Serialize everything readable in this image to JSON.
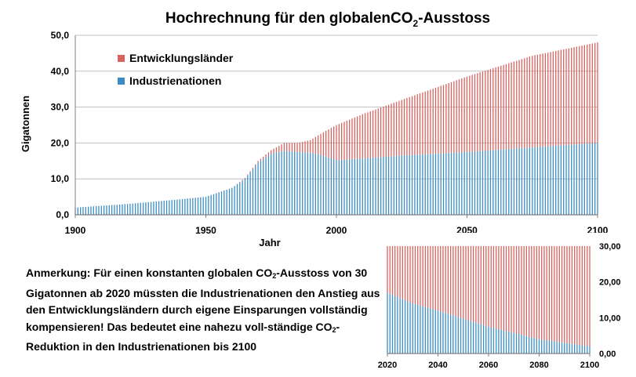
{
  "colors": {
    "developing": "#d9625f",
    "industrial": "#3a8cc4",
    "grid": "#bfbfbf",
    "axis": "#7f7f7f"
  },
  "title": {
    "prefix": "Hochrechnung für den globalenCO",
    "sub": "2",
    "suffix": "-Ausstoss"
  },
  "note": {
    "p1": "Anmerkung: Für einen konstanten globalen CO",
    "p1sub": "2",
    "p2": "-Ausstoss von 30 Gigatonnen ab 2020 müssten die Industrienationen den Anstieg aus den Entwicklungsländern durch eigene Einsparungen vollständig kompensieren! Das bedeutet eine nahezu voll-ständige CO",
    "p2sub": "2",
    "p3": "-Reduktion in den Industrienationen bis 2100"
  },
  "chart_data": [
    {
      "type": "bar",
      "stacked": true,
      "xlabel": "Jahr",
      "ylabel": "Gigatonnen",
      "xlim": [
        1900,
        2100
      ],
      "ylim": [
        0,
        50
      ],
      "x_ticks": [
        "1900",
        "1950",
        "2000",
        "2050",
        "2100"
      ],
      "y_ticks": [
        "0,0",
        "10,0",
        "20,0",
        "30,0",
        "40,0",
        "50,0"
      ],
      "grid": true,
      "legend_position": "top-left",
      "series": [
        {
          "name": "Industrienationen",
          "color": "#3a8cc4",
          "points": [
            [
              1900,
              2.0
            ],
            [
              1920,
              3.0
            ],
            [
              1940,
              4.3
            ],
            [
              1950,
              5.0
            ],
            [
              1960,
              7.5
            ],
            [
              1965,
              10.0
            ],
            [
              1970,
              14.5
            ],
            [
              1975,
              17.0
            ],
            [
              1980,
              17.8
            ],
            [
              1985,
              17.5
            ],
            [
              1990,
              17.3
            ],
            [
              1995,
              16.5
            ],
            [
              2000,
              15.2
            ],
            [
              2010,
              15.7
            ],
            [
              2025,
              16.5
            ],
            [
              2050,
              17.5
            ],
            [
              2075,
              18.8
            ],
            [
              2100,
              20.0
            ]
          ]
        },
        {
          "name": "Entwicklungsländer",
          "color": "#d9625f",
          "points": [
            [
              1900,
              0.0
            ],
            [
              1960,
              0.0
            ],
            [
              1970,
              0.5
            ],
            [
              1975,
              1.0
            ],
            [
              1980,
              2.2
            ],
            [
              1985,
              2.5
            ],
            [
              1990,
              3.5
            ],
            [
              1995,
              6.5
            ],
            [
              2000,
              9.8
            ],
            [
              2010,
              12.3
            ],
            [
              2025,
              15.5
            ],
            [
              2050,
              21.0
            ],
            [
              2075,
              25.5
            ],
            [
              2100,
              28.0
            ]
          ]
        }
      ]
    },
    {
      "type": "bar",
      "stacked": true,
      "xlim": [
        2020,
        2100
      ],
      "ylim": [
        0,
        30
      ],
      "x_ticks": [
        "2020",
        "2040",
        "2060",
        "2080",
        "2100"
      ],
      "y_ticks": [
        "0,00",
        "10,00",
        "20,00",
        "30,00"
      ],
      "grid": false,
      "series": [
        {
          "name": "Industrienationen",
          "color": "#3a8cc4",
          "points": [
            [
              2020,
              17.0
            ],
            [
              2030,
              14.0
            ],
            [
              2040,
              12.0
            ],
            [
              2060,
              7.5
            ],
            [
              2080,
              4.0
            ],
            [
              2100,
              2.0
            ]
          ]
        },
        {
          "name": "Entwicklungsländer",
          "color": "#d9625f",
          "points": [
            [
              2020,
              13.0
            ],
            [
              2030,
              16.0
            ],
            [
              2040,
              18.0
            ],
            [
              2060,
              22.5
            ],
            [
              2080,
              26.0
            ],
            [
              2100,
              28.0
            ]
          ]
        }
      ]
    }
  ]
}
